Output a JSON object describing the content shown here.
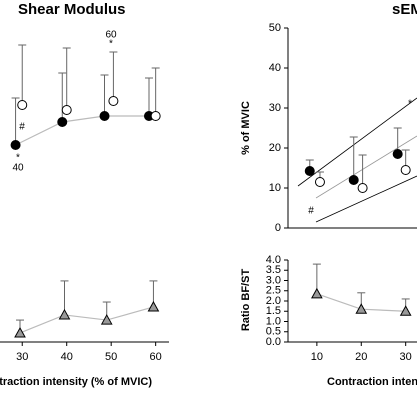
{
  "chart_data": [
    {
      "type": "line",
      "title": "Shear Modulus",
      "xlim": [
        25,
        63
      ],
      "ylim": [
        0,
        100
      ],
      "series": [
        {
          "marker": "filled-circle",
          "color": "#000000",
          "line_color": "#bbbbbb",
          "x": [
            28.5,
            39,
            48.5,
            58.5
          ],
          "values": [
            41.5,
            53,
            56,
            56
          ],
          "errors": [
            23.5,
            24.5,
            20.5,
            19
          ]
        },
        {
          "marker": "open-circle",
          "color": "#ffffff",
          "line_color": null,
          "x": [
            30,
            40,
            50.5,
            60
          ],
          "values": [
            61.5,
            59,
            63.5,
            56
          ],
          "errors": [
            30,
            31,
            24.5,
            24
          ]
        }
      ],
      "annotations": [
        "60",
        "*",
        "#",
        "*",
        "40"
      ]
    },
    {
      "type": "line",
      "title": "sEMG",
      "y_label": "% of MVIC",
      "xlim": [
        3.5,
        33
      ],
      "ylim": [
        0,
        50
      ],
      "yticks": [
        0,
        10,
        20,
        30,
        40,
        50
      ],
      "series": [
        {
          "marker": "filled-circle",
          "color": "#000000",
          "line_color": null,
          "x": [
            8.4,
            18.3,
            28.2
          ],
          "values": [
            14.25,
            12,
            18.5
          ],
          "errors": [
            2.75,
            10.75,
            6.5
          ]
        },
        {
          "marker": "open-circle",
          "color": "#ffffff",
          "line_color": null,
          "x": [
            10.7,
            20.3,
            30
          ],
          "values": [
            11.5,
            10,
            14.5
          ],
          "errors": [
            2.5,
            8.25,
            5
          ]
        }
      ],
      "annotations": [
        "*",
        "#"
      ]
    },
    {
      "type": "line",
      "x_label": "Contraction intensity (% of MVIC)",
      "xlim": [
        25,
        63
      ],
      "ylim": [
        0,
        4
      ],
      "xticks": [
        30,
        40,
        50,
        60
      ],
      "series": [
        {
          "marker": "triangle",
          "color": "#999999",
          "line_color": "#bbbbbb",
          "x": [
            29.5,
            39.5,
            49,
            59.5
          ],
          "values": [
            0.44,
            1.32,
            1.07,
            1.71
          ],
          "errors": [
            0.63,
            1.66,
            0.88,
            1.27
          ]
        }
      ]
    },
    {
      "type": "line",
      "x_label": "Contraction intensity (% of MVIC)",
      "y_label": "Ratio BF/ST",
      "xlim": [
        3.5,
        33
      ],
      "ylim": [
        0,
        4
      ],
      "xticks": [
        10,
        20,
        30
      ],
      "yticks": [
        {
          "value": 0,
          "label": "0.0"
        },
        {
          "value": 0.5,
          "label": "0.5"
        },
        {
          "value": 1,
          "label": "1.0"
        },
        {
          "value": 1.5,
          "label": "1.5"
        },
        {
          "value": 2,
          "label": "2.0"
        },
        {
          "value": 2.5,
          "label": "2.5"
        },
        {
          "value": 3,
          "label": "3.0"
        },
        {
          "value": 3.5,
          "label": "3.5"
        },
        {
          "value": 4,
          "label": "4.0"
        }
      ],
      "series": [
        {
          "marker": "triangle",
          "color": "#999999",
          "line_color": "#bbbbbb",
          "x": [
            10,
            20,
            30
          ],
          "values": [
            2.35,
            1.6,
            1.5
          ],
          "errors": [
            1.45,
            0.8,
            0.6
          ]
        }
      ]
    }
  ]
}
